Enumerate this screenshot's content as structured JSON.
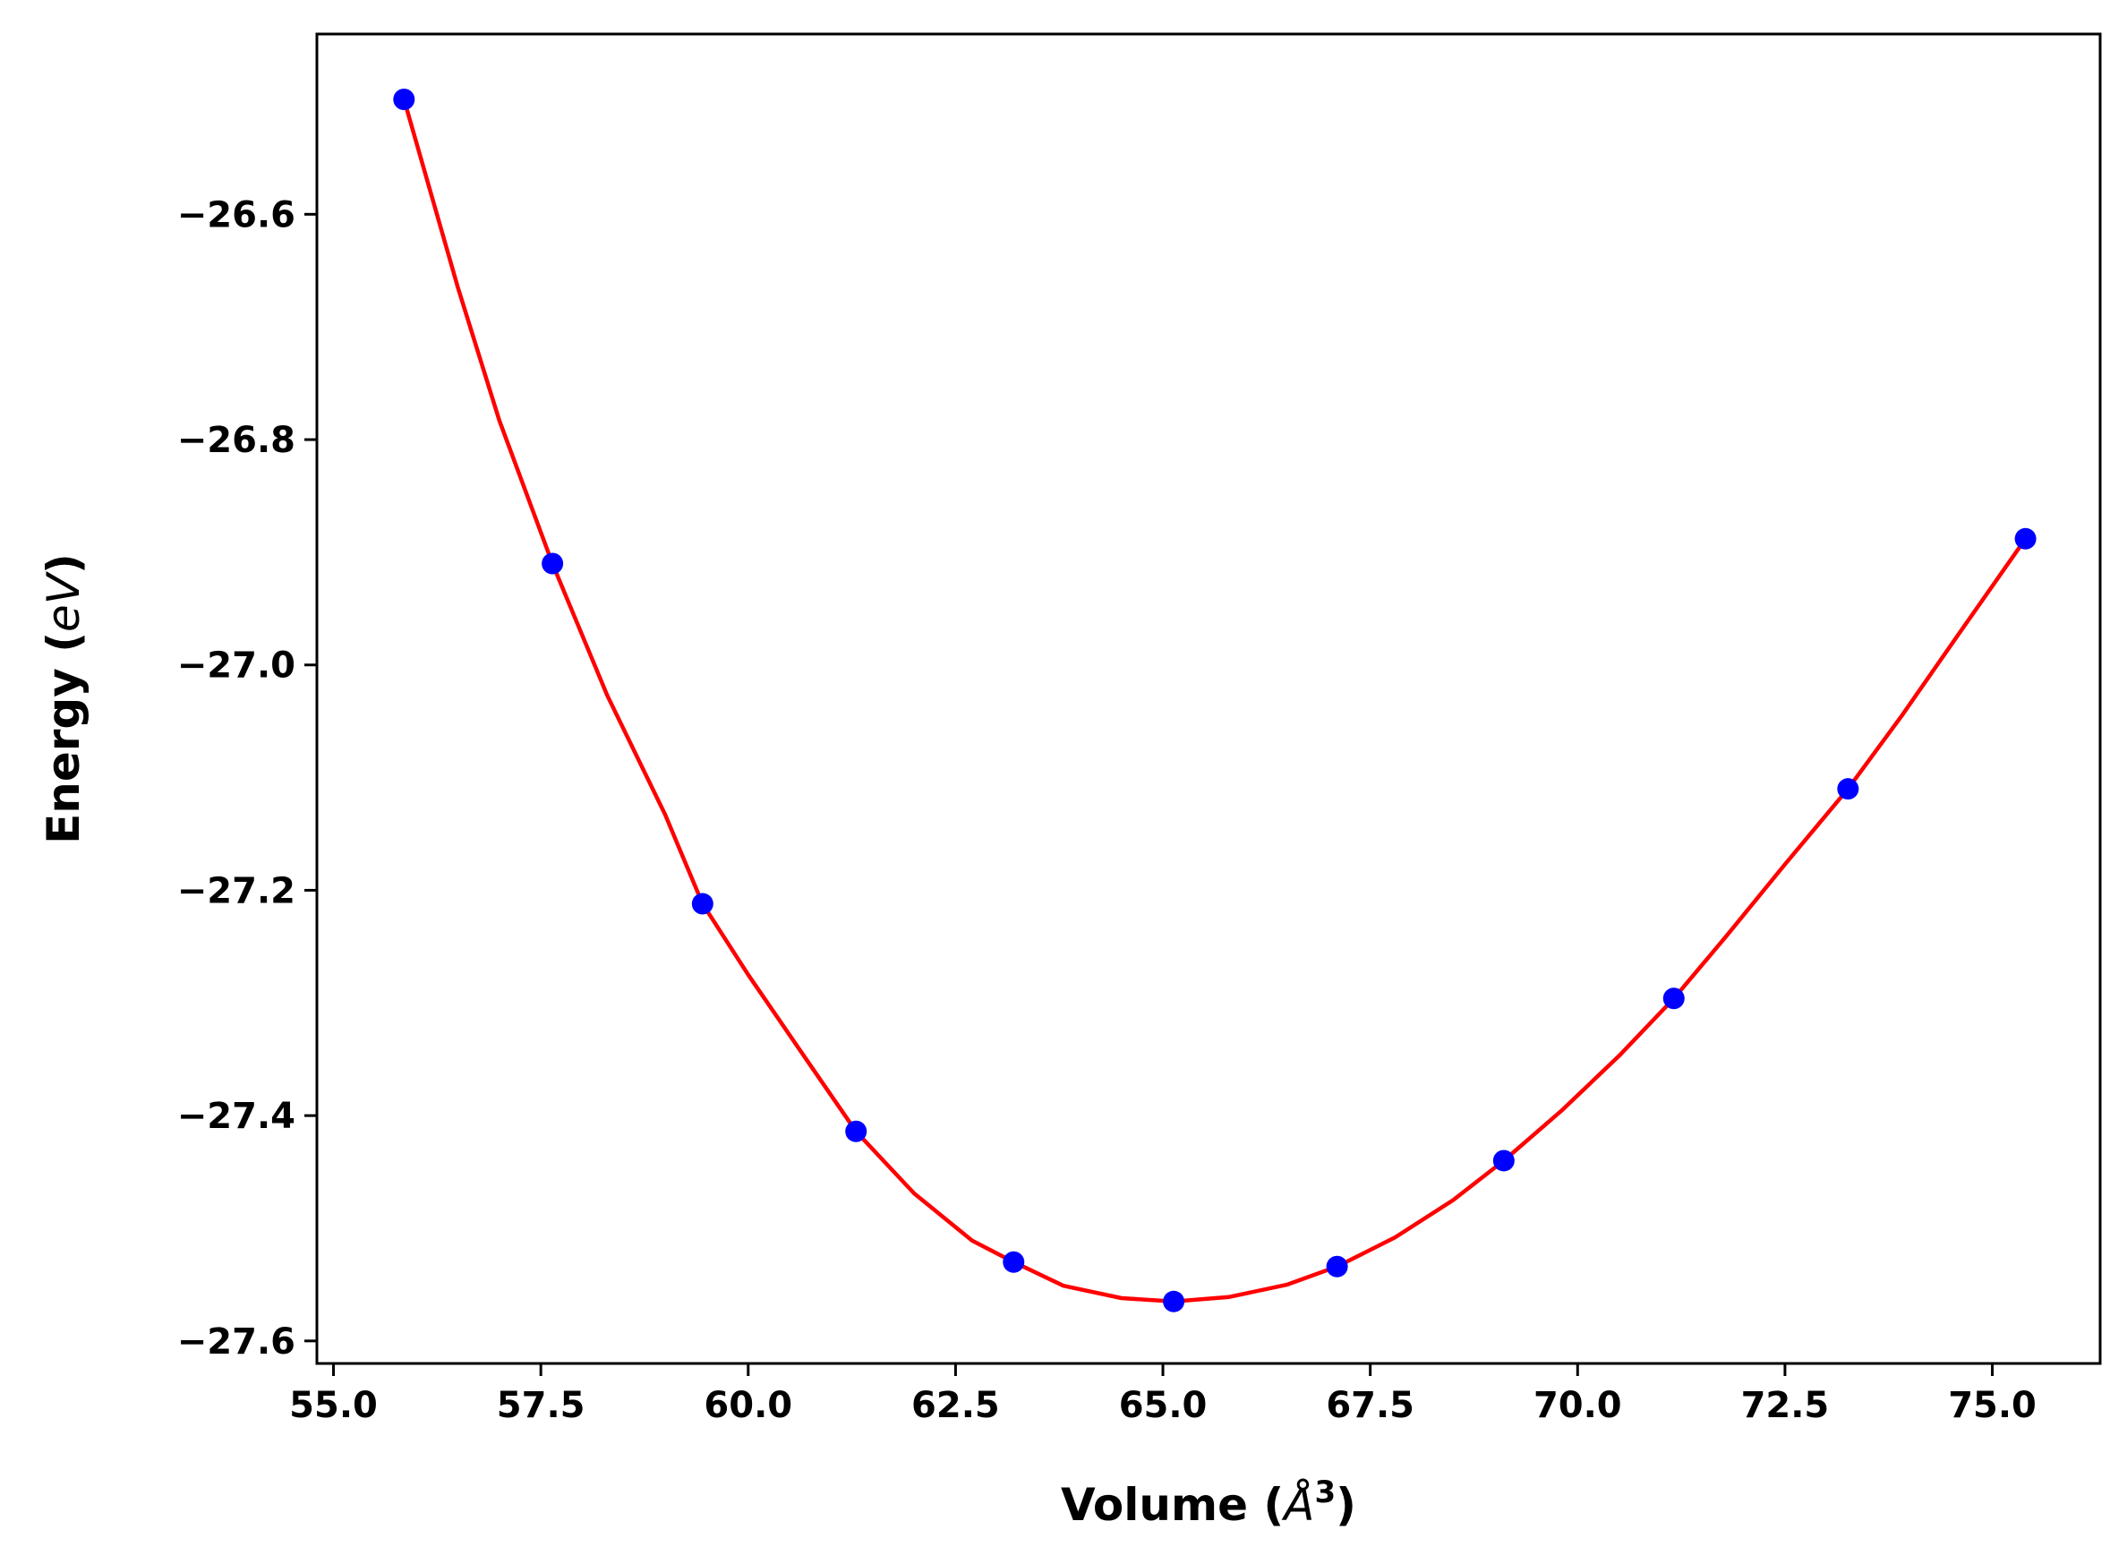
{
  "chart_data": {
    "type": "scatter",
    "title": "",
    "xlabel": "Volume (Å³)",
    "xlabel_parts": {
      "prefix": "Volume (",
      "unit": "Å",
      "sup": "3",
      "suffix": ")"
    },
    "ylabel": "Energy (eV)",
    "ylabel_parts": {
      "prefix": "Energy (",
      "unit": "eV",
      "suffix": ")"
    },
    "xlim": [
      54.8,
      76.3
    ],
    "ylim": [
      -27.62,
      -26.44
    ],
    "x_ticks": [
      55.0,
      57.5,
      60.0,
      62.5,
      65.0,
      67.5,
      70.0,
      72.5,
      75.0
    ],
    "x_tick_labels": [
      "55.0",
      "57.5",
      "60.0",
      "62.5",
      "65.0",
      "67.5",
      "70.0",
      "72.5",
      "75.0"
    ],
    "y_ticks": [
      -26.6,
      -26.8,
      -27.0,
      -27.2,
      -27.4,
      -27.6
    ],
    "y_tick_labels": [
      "−26.6",
      "−26.8",
      "−27.0",
      "−27.2",
      "−27.4",
      "−27.6"
    ],
    "grid": false,
    "series": [
      {
        "name": "data",
        "kind": "markers",
        "color": "#0000ff",
        "x": [
          55.85,
          57.64,
          59.45,
          61.3,
          63.2,
          65.13,
          67.1,
          69.11,
          71.16,
          73.26,
          75.4
        ],
        "y": [
          -26.498,
          -26.91,
          -27.212,
          -27.414,
          -27.53,
          -27.565,
          -27.534,
          -27.44,
          -27.296,
          -27.11,
          -26.888
        ]
      },
      {
        "name": "fit",
        "kind": "line",
        "color": "#ff0000",
        "x": [
          55.85,
          56.5,
          57.0,
          57.64,
          58.3,
          59.0,
          59.45,
          60.0,
          60.7,
          61.3,
          62.0,
          62.7,
          63.2,
          63.8,
          64.5,
          65.13,
          65.8,
          66.5,
          67.1,
          67.8,
          68.5,
          69.11,
          69.8,
          70.5,
          71.16,
          71.8,
          72.5,
          73.26,
          73.9,
          74.6,
          75.4
        ],
        "y": [
          -26.498,
          -26.665,
          -26.783,
          -26.91,
          -27.027,
          -27.133,
          -27.212,
          -27.275,
          -27.35,
          -27.414,
          -27.469,
          -27.511,
          -27.53,
          -27.551,
          -27.562,
          -27.565,
          -27.561,
          -27.55,
          -27.534,
          -27.508,
          -27.475,
          -27.44,
          -27.396,
          -27.347,
          -27.296,
          -27.24,
          -27.177,
          -27.11,
          -27.046,
          -26.972,
          -26.888
        ]
      }
    ]
  }
}
